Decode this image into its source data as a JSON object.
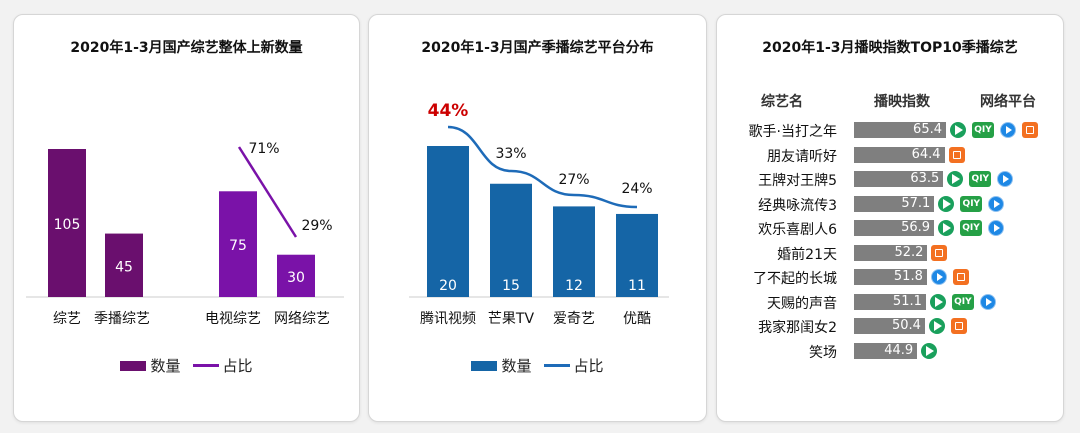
{
  "chart_data": [
    {
      "type": "bar",
      "title": "2020年1-3月国产综艺整体上新数量",
      "categories": [
        "综艺",
        "季播综艺",
        "电视综艺",
        "网络综艺"
      ],
      "values": [
        105,
        45,
        75,
        30
      ],
      "line_labels": [
        "71%",
        "29%"
      ],
      "legend": [
        "数量",
        "占比"
      ],
      "colors": {
        "bar_dark": "#6a0f6e",
        "bar_light": "#7a12a8",
        "line": "#7a12a8"
      }
    },
    {
      "type": "bar",
      "title": "2020年1-3月国产季播综艺平台分布",
      "categories": [
        "腾讯视频",
        "芒果TV",
        "爱奇艺",
        "优酷"
      ],
      "values": [
        20,
        15,
        12,
        11
      ],
      "line_values": [
        44,
        33,
        27,
        24
      ],
      "line_labels": [
        "44%",
        "33%",
        "27%",
        "24%"
      ],
      "legend": [
        "数量",
        "占比"
      ],
      "colors": {
        "bar": "#1565a6",
        "line": "#1e6bb8",
        "highlight": "#cc0000"
      }
    },
    {
      "type": "table",
      "title": "2020年1-3月播映指数TOP10季播综艺",
      "headers": [
        "综艺名",
        "播映指数",
        "网络平台"
      ],
      "rows": [
        {
          "name": "歌手·当打之年",
          "value": 65.4,
          "label": "65.4",
          "platforms": [
            "tencent-icon",
            "iqiyi-icon",
            "youku-icon",
            "mango-icon"
          ]
        },
        {
          "name": "朋友请听好",
          "value": 64.4,
          "label": "64.4",
          "platforms": [
            "mango-icon"
          ]
        },
        {
          "name": "王牌对王牌5",
          "value": 63.5,
          "label": "63.5",
          "platforms": [
            "tencent-icon",
            "iqiyi-icon",
            "youku-icon"
          ]
        },
        {
          "name": "经典咏流传3",
          "value": 57.1,
          "label": "57.1",
          "platforms": [
            "tencent-icon",
            "iqiyi-icon",
            "youku-icon"
          ]
        },
        {
          "name": "欢乐喜剧人6",
          "value": 56.9,
          "label": "56.9",
          "platforms": [
            "tencent-icon",
            "iqiyi-icon",
            "youku-icon"
          ]
        },
        {
          "name": "婚前21天",
          "value": 52.2,
          "label": "52.2",
          "platforms": [
            "mango-icon"
          ]
        },
        {
          "name": "了不起的长城",
          "value": 51.8,
          "label": "51.8",
          "platforms": [
            "youku-icon",
            "mango-icon"
          ]
        },
        {
          "name": "天赐的声音",
          "value": 51.1,
          "label": "51.1",
          "platforms": [
            "tencent-icon",
            "iqiyi-icon",
            "youku-icon"
          ]
        },
        {
          "name": "我家那闺女2",
          "value": 50.4,
          "label": "50.4",
          "platforms": [
            "tencent-icon",
            "mango-icon"
          ]
        },
        {
          "name": "笑场",
          "value": 44.9,
          "label": "44.9",
          "platforms": [
            "tencent-icon"
          ]
        }
      ],
      "colors": {
        "bar": "#7f7f7f"
      }
    }
  ],
  "icon_text": {
    "iqiyi": "QIY"
  }
}
